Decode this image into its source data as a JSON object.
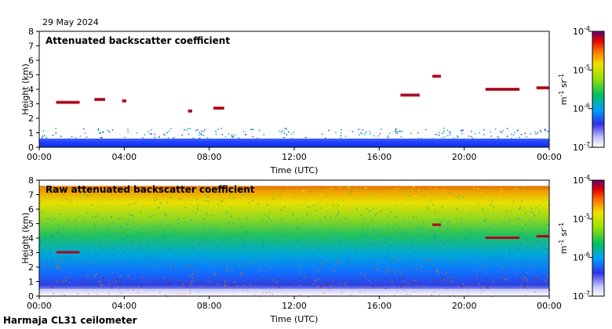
{
  "date": "29 May 2024",
  "caption": "Harmaja CL31 ceilometer",
  "chart_data": [
    {
      "type": "heatmap",
      "title": "Attenuated backscatter coefficient",
      "xlabel": "Time (UTC)",
      "ylabel": "Height (km)",
      "xticks": [
        "00:00",
        "04:00",
        "08:00",
        "12:00",
        "16:00",
        "20:00",
        "00:00"
      ],
      "yticks": [
        "0",
        "1",
        "2",
        "3",
        "4",
        "5",
        "6",
        "7",
        "8"
      ],
      "xlim_hours": [
        0,
        24
      ],
      "ylim_km": [
        0,
        8
      ],
      "near_surface_layer_top_km": 0.6,
      "cloud_features": [
        {
          "name": "early-cloud",
          "start_h": 0.8,
          "end_h": 1.9,
          "height_km": 3.1
        },
        {
          "name": "mid-cloud-0240",
          "start_h": 2.6,
          "end_h": 3.1,
          "height_km": 3.3
        },
        {
          "name": "cloud-0400",
          "start_h": 3.9,
          "end_h": 4.1,
          "height_km": 3.2
        },
        {
          "name": "cloud-0700",
          "start_h": 7.0,
          "end_h": 7.2,
          "height_km": 2.5
        },
        {
          "name": "cloud-0820",
          "start_h": 8.2,
          "end_h": 8.7,
          "height_km": 2.7
        },
        {
          "name": "cloud-1700",
          "start_h": 17.0,
          "end_h": 17.9,
          "height_km": 3.6
        },
        {
          "name": "cloud-1830",
          "start_h": 18.5,
          "end_h": 18.9,
          "height_km": 4.9
        },
        {
          "name": "cloud-2100",
          "start_h": 21.0,
          "end_h": 22.6,
          "height_km": 4.0
        },
        {
          "name": "cloud-2340",
          "start_h": 23.4,
          "end_h": 24.0,
          "height_km": 4.1
        }
      ],
      "colorbar": {
        "min": "10-7",
        "max": "10-4",
        "label": "m-1 sr-1",
        "ticks": [
          "10-4",
          "10-5",
          "10-6",
          "10-7"
        ]
      }
    },
    {
      "type": "heatmap",
      "title": "Raw attenuated backscatter coefficient",
      "xlabel": "Time (UTC)",
      "ylabel": "Height (km)",
      "xticks": [
        "00:00",
        "04:00",
        "08:00",
        "12:00",
        "16:00",
        "20:00",
        "00:00"
      ],
      "yticks": [
        "0",
        "1",
        "2",
        "3",
        "4",
        "5",
        "6",
        "7",
        "8"
      ],
      "xlim_hours": [
        0,
        24
      ],
      "ylim_km": [
        0,
        8
      ],
      "noise_top_km": 7.6,
      "cloud_features": [
        {
          "name": "early-cloud",
          "start_h": 0.8,
          "end_h": 1.9,
          "height_km": 3.0
        },
        {
          "name": "cloud-1830",
          "start_h": 18.5,
          "end_h": 18.9,
          "height_km": 4.9
        },
        {
          "name": "cloud-2100",
          "start_h": 21.0,
          "end_h": 22.6,
          "height_km": 4.0
        },
        {
          "name": "cloud-2340",
          "start_h": 23.4,
          "end_h": 24.0,
          "height_km": 4.1
        }
      ],
      "colorbar": {
        "min": "10-7",
        "max": "10-4",
        "label": "m-1 sr-1",
        "ticks": [
          "10-4",
          "10-5",
          "10-6",
          "10-7"
        ]
      }
    }
  ]
}
